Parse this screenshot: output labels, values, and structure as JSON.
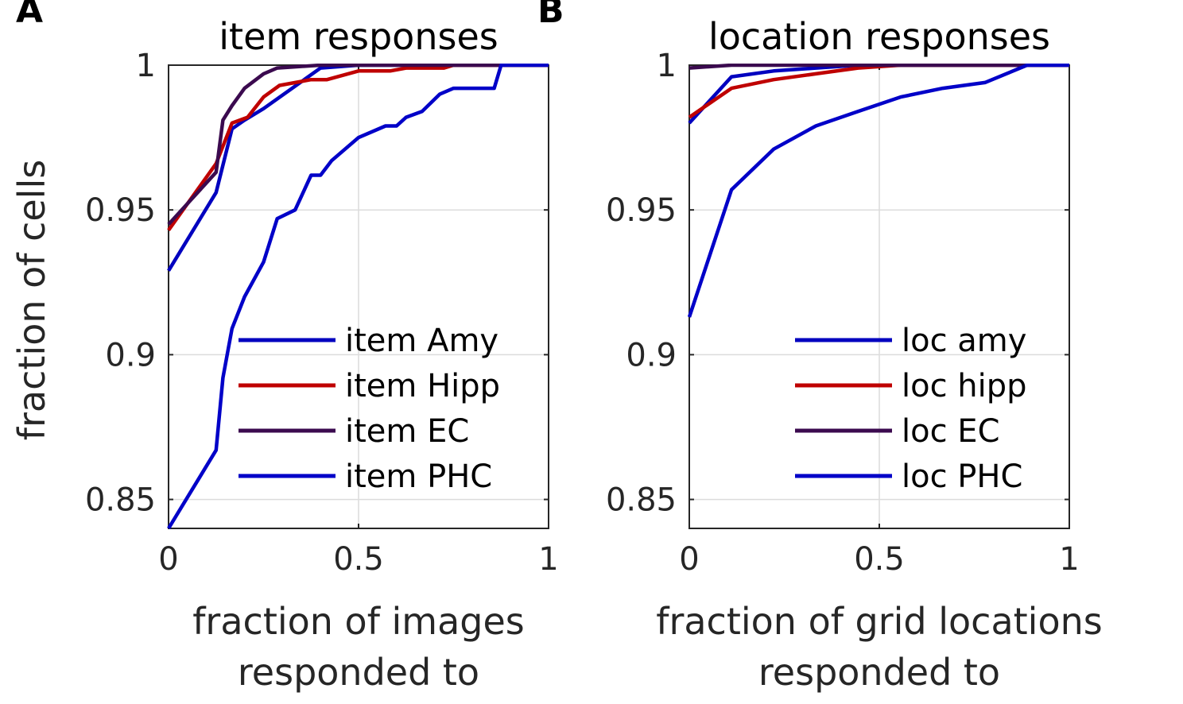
{
  "chart_data": [
    {
      "panel_label": "A",
      "type": "line",
      "title": "item responses",
      "xlabel": [
        "fraction of images",
        "responded to"
      ],
      "ylabel": "fraction of cells",
      "xlim": [
        0,
        1
      ],
      "ylim": [
        0.84,
        1
      ],
      "xticks": [
        "0",
        "0.5",
        "1"
      ],
      "yticks": [
        "0.85",
        "0.9",
        "0.95",
        "1"
      ],
      "grid": true,
      "legend_position": "bottom-right",
      "series": [
        {
          "name": "item Amy",
          "color": "#0000bf",
          "x": [
            0,
            0.125,
            0.167,
            0.2,
            0.25,
            0.4,
            0.5,
            1
          ],
          "y": [
            0.929,
            0.956,
            0.978,
            0.981,
            0.985,
            0.999,
            1,
            1
          ]
        },
        {
          "name": "item Hipp",
          "color": "#bf0000",
          "x": [
            0,
            0.125,
            0.167,
            0.208,
            0.25,
            0.292,
            0.375,
            0.417,
            0.5,
            0.583,
            0.625,
            0.725,
            0.75,
            1
          ],
          "y": [
            0.943,
            0.966,
            0.98,
            0.982,
            0.989,
            0.993,
            0.995,
            0.995,
            0.998,
            0.998,
            0.999,
            0.999,
            1,
            1
          ]
        },
        {
          "name": "item EC",
          "color": "#3b0a4f",
          "x": [
            0,
            0.125,
            0.143,
            0.167,
            0.2,
            0.25,
            0.286,
            0.4,
            1
          ],
          "y": [
            0.945,
            0.963,
            0.981,
            0.986,
            0.992,
            0.997,
            0.999,
            1,
            1
          ]
        },
        {
          "name": "item PHC",
          "color": "#0000c8",
          "x": [
            0,
            0.125,
            0.143,
            0.167,
            0.2,
            0.25,
            0.286,
            0.333,
            0.375,
            0.4,
            0.429,
            0.5,
            0.571,
            0.6,
            0.625,
            0.667,
            0.714,
            0.75,
            0.857,
            0.875,
            1
          ],
          "y": [
            0.84,
            0.867,
            0.892,
            0.909,
            0.92,
            0.932,
            0.947,
            0.95,
            0.962,
            0.962,
            0.967,
            0.975,
            0.979,
            0.979,
            0.982,
            0.984,
            0.99,
            0.992,
            0.992,
            1,
            1
          ]
        }
      ]
    },
    {
      "panel_label": "B",
      "type": "line",
      "title": "location responses",
      "xlabel": [
        "fraction of grid locations",
        "responded to"
      ],
      "ylabel": "",
      "xlim": [
        0,
        1
      ],
      "ylim": [
        0.84,
        1
      ],
      "xticks": [
        "0",
        "0.5",
        "1"
      ],
      "yticks": [
        "0.85",
        "0.9",
        "0.95",
        "1"
      ],
      "grid": true,
      "legend_position": "bottom-right",
      "series": [
        {
          "name": "loc amy",
          "color": "#0000bf",
          "x": [
            0,
            0.111,
            0.222,
            0.333,
            0.444,
            0.556,
            1
          ],
          "y": [
            0.98,
            0.996,
            0.998,
            0.999,
            1,
            1,
            1
          ]
        },
        {
          "name": "loc hipp",
          "color": "#bf0000",
          "x": [
            0,
            0.111,
            0.222,
            0.333,
            0.444,
            0.556,
            1
          ],
          "y": [
            0.982,
            0.992,
            0.995,
            0.997,
            0.999,
            1,
            1
          ]
        },
        {
          "name": "loc EC",
          "color": "#3b0a4f",
          "x": [
            0,
            0.111,
            0.222,
            1
          ],
          "y": [
            0.999,
            1,
            1,
            1
          ]
        },
        {
          "name": "loc PHC",
          "color": "#0000c8",
          "x": [
            0,
            0.111,
            0.222,
            0.333,
            0.444,
            0.556,
            0.667,
            0.778,
            0.889,
            1
          ],
          "y": [
            0.913,
            0.957,
            0.971,
            0.979,
            0.984,
            0.989,
            0.992,
            0.994,
            1,
            1
          ]
        }
      ]
    }
  ]
}
